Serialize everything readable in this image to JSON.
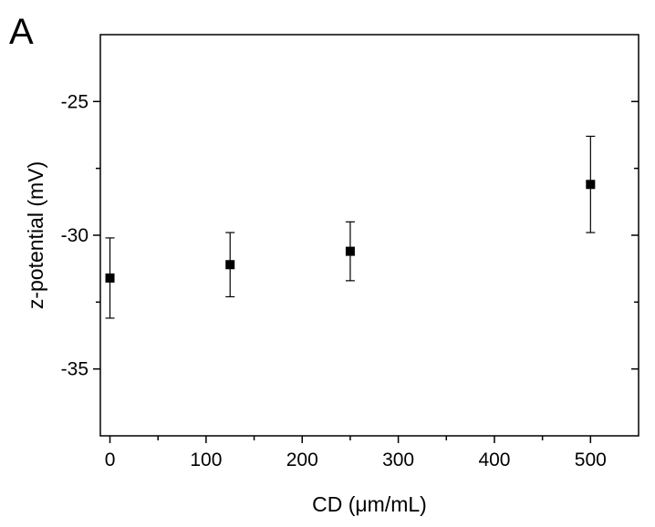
{
  "chart_data": {
    "type": "scatter",
    "panel_label": "A",
    "xlabel": "CD (μm/mL)",
    "ylabel": "z-potential (mV)",
    "xlim": [
      -10,
      550
    ],
    "ylim": [
      -37.5,
      -22.5
    ],
    "xticks": [
      0,
      100,
      200,
      300,
      400,
      500
    ],
    "yticks": [
      -25,
      -30,
      -35
    ],
    "grid": false,
    "points": [
      {
        "x": 0,
        "y": -31.6,
        "err_low": -33.1,
        "err_high": -30.1
      },
      {
        "x": 125,
        "y": -31.1,
        "err_low": -32.3,
        "err_high": -29.9
      },
      {
        "x": 250,
        "y": -30.6,
        "err_low": -31.7,
        "err_high": -29.5
      },
      {
        "x": 500,
        "y": -28.1,
        "err_low": -29.9,
        "err_high": -26.3
      }
    ],
    "marker": "square",
    "color": "#000000"
  }
}
